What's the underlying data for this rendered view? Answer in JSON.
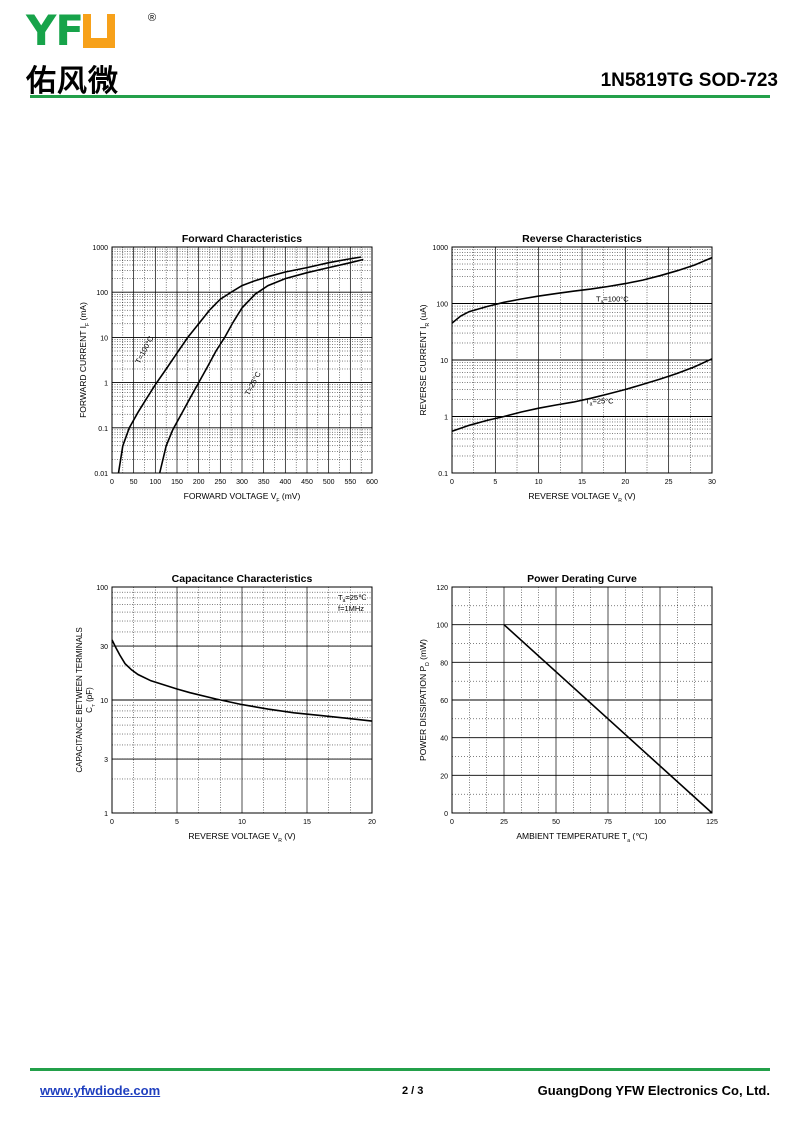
{
  "header": {
    "logo_latin": "YFW",
    "logo_chinese": "佑风微",
    "logo_reg": "®",
    "title": "1N5819TG  SOD-723"
  },
  "footer": {
    "url": "www.yfwdiode.com",
    "page": "2 / 3",
    "company": "GuangDong YFW Electronics Co, Ltd."
  },
  "colors": {
    "rule": "#23a04a",
    "grid": "#000000"
  },
  "chart_data": [
    {
      "type": "line",
      "title": "Forward    Characteristics",
      "xlabel": "FORWARD VOLTAGE   V",
      "xlabel_sub": "F",
      "xlabel_unit": "(mV)",
      "ylabel": "FORWARD CURRENT   I",
      "ylabel_sub": "F",
      "ylabel_unit": "(mA)",
      "xlim": [
        0,
        600
      ],
      "ylim": [
        0.01,
        1000
      ],
      "yscale": "log",
      "xticks": [
        "0",
        "50",
        "100",
        "150",
        "200",
        "250",
        "300",
        "350",
        "400",
        "450",
        "500",
        "550",
        "600"
      ],
      "yticks": [
        "0.01",
        "0.1",
        "1",
        "10",
        "100",
        "1000"
      ],
      "grid": true,
      "series": [
        {
          "name": "T=100°C",
          "x": [
            15,
            25,
            40,
            60,
            80,
            100,
            125,
            150,
            175,
            200,
            225,
            250,
            275,
            300,
            330,
            360,
            400,
            450,
            500,
            540,
            575
          ],
          "y": [
            0.01,
            0.04,
            0.1,
            0.22,
            0.45,
            0.9,
            2,
            4.5,
            10,
            20,
            40,
            70,
            100,
            140,
            180,
            220,
            280,
            350,
            450,
            530,
            600
          ]
        },
        {
          "name": "T=25°C",
          "x": [
            110,
            125,
            140,
            160,
            180,
            200,
            220,
            240,
            260,
            280,
            300,
            330,
            360,
            400,
            450,
            500,
            550,
            580
          ],
          "y": [
            0.01,
            0.04,
            0.09,
            0.2,
            0.45,
            1,
            2.2,
            5,
            10,
            22,
            45,
            90,
            140,
            200,
            270,
            350,
            450,
            530
          ]
        }
      ]
    },
    {
      "type": "line",
      "title": "Reverse    Characteristics",
      "xlabel": "REVERSE VOLTAGE   V",
      "xlabel_sub": "R",
      "xlabel_unit": "(V)",
      "ylabel": "REVERSE CURRENT   I",
      "ylabel_sub": "R",
      "ylabel_unit": "(uA)",
      "xlim": [
        0,
        30
      ],
      "ylim": [
        0.1,
        1000
      ],
      "yscale": "log",
      "xticks": [
        "0",
        "5",
        "10",
        "15",
        "20",
        "25",
        "30"
      ],
      "yticks": [
        "0.1",
        "1",
        "10",
        "100",
        "1000"
      ],
      "grid": true,
      "series": [
        {
          "name": "T=100°C",
          "x": [
            0,
            1,
            2,
            4,
            6,
            8,
            10,
            12,
            14,
            16,
            18,
            20,
            22,
            24,
            26,
            28,
            30
          ],
          "y": [
            45,
            60,
            72,
            88,
            105,
            120,
            135,
            150,
            165,
            180,
            200,
            225,
            260,
            310,
            380,
            480,
            650
          ]
        },
        {
          "name": "T=25°C",
          "x": [
            0,
            2,
            4,
            6,
            8,
            10,
            12,
            14,
            16,
            18,
            20,
            22,
            24,
            26,
            28,
            30
          ],
          "y": [
            0.55,
            0.7,
            0.85,
            1.0,
            1.2,
            1.4,
            1.6,
            1.8,
            2.1,
            2.5,
            3.0,
            3.7,
            4.6,
            5.8,
            7.6,
            10.5
          ]
        }
      ],
      "annotations": [
        "T =100°C",
        "T =25°C"
      ],
      "annotation_sub": "a"
    },
    {
      "type": "line",
      "title": "Capacitance Characteristics",
      "xlabel": "REVERSE VOLTAGE   V",
      "xlabel_sub": "R",
      "xlabel_unit": "(V)",
      "ylabel": "CAPACITANCE BETWEEN TERMINALS",
      "ylabel2": "C",
      "ylabel2_sub": "T",
      "ylabel2_unit": "(pF)",
      "xlim": [
        0,
        20
      ],
      "ylim": [
        1,
        100
      ],
      "yscale": "log",
      "xticks": [
        "0",
        "5",
        "10",
        "15",
        "20"
      ],
      "yticks": [
        "1",
        "3",
        "10",
        "30",
        "100"
      ],
      "grid": true,
      "notes": [
        "T =25℃",
        "f=1MHz"
      ],
      "note_sub": "a",
      "series": [
        {
          "x": [
            0,
            0.3,
            0.6,
            1,
            1.5,
            2,
            3,
            4,
            5,
            6,
            8,
            10,
            12,
            14,
            16,
            18,
            20
          ],
          "y": [
            34,
            29,
            25,
            21,
            18.5,
            16.8,
            14.8,
            13.6,
            12.5,
            11.6,
            10.2,
            9.1,
            8.3,
            7.7,
            7.3,
            6.9,
            6.5
          ]
        }
      ]
    },
    {
      "type": "line",
      "title": "Power Derating Curve",
      "xlabel": "AMBIENT TEMPERATURE   T",
      "xlabel_sub": "a",
      "xlabel_unit": "(℃)",
      "ylabel": "POWER DISSIPATION   P",
      "ylabel_sub": "D",
      "ylabel_unit": "(mW)",
      "xlim": [
        0,
        125
      ],
      "ylim": [
        0,
        120
      ],
      "yscale": "linear",
      "xticks": [
        "0",
        "25",
        "50",
        "75",
        "100",
        "125"
      ],
      "yticks": [
        "0",
        "20",
        "40",
        "60",
        "80",
        "100",
        "120"
      ],
      "grid": true,
      "series": [
        {
          "x": [
            25,
            125
          ],
          "y": [
            100,
            0
          ]
        }
      ]
    }
  ]
}
